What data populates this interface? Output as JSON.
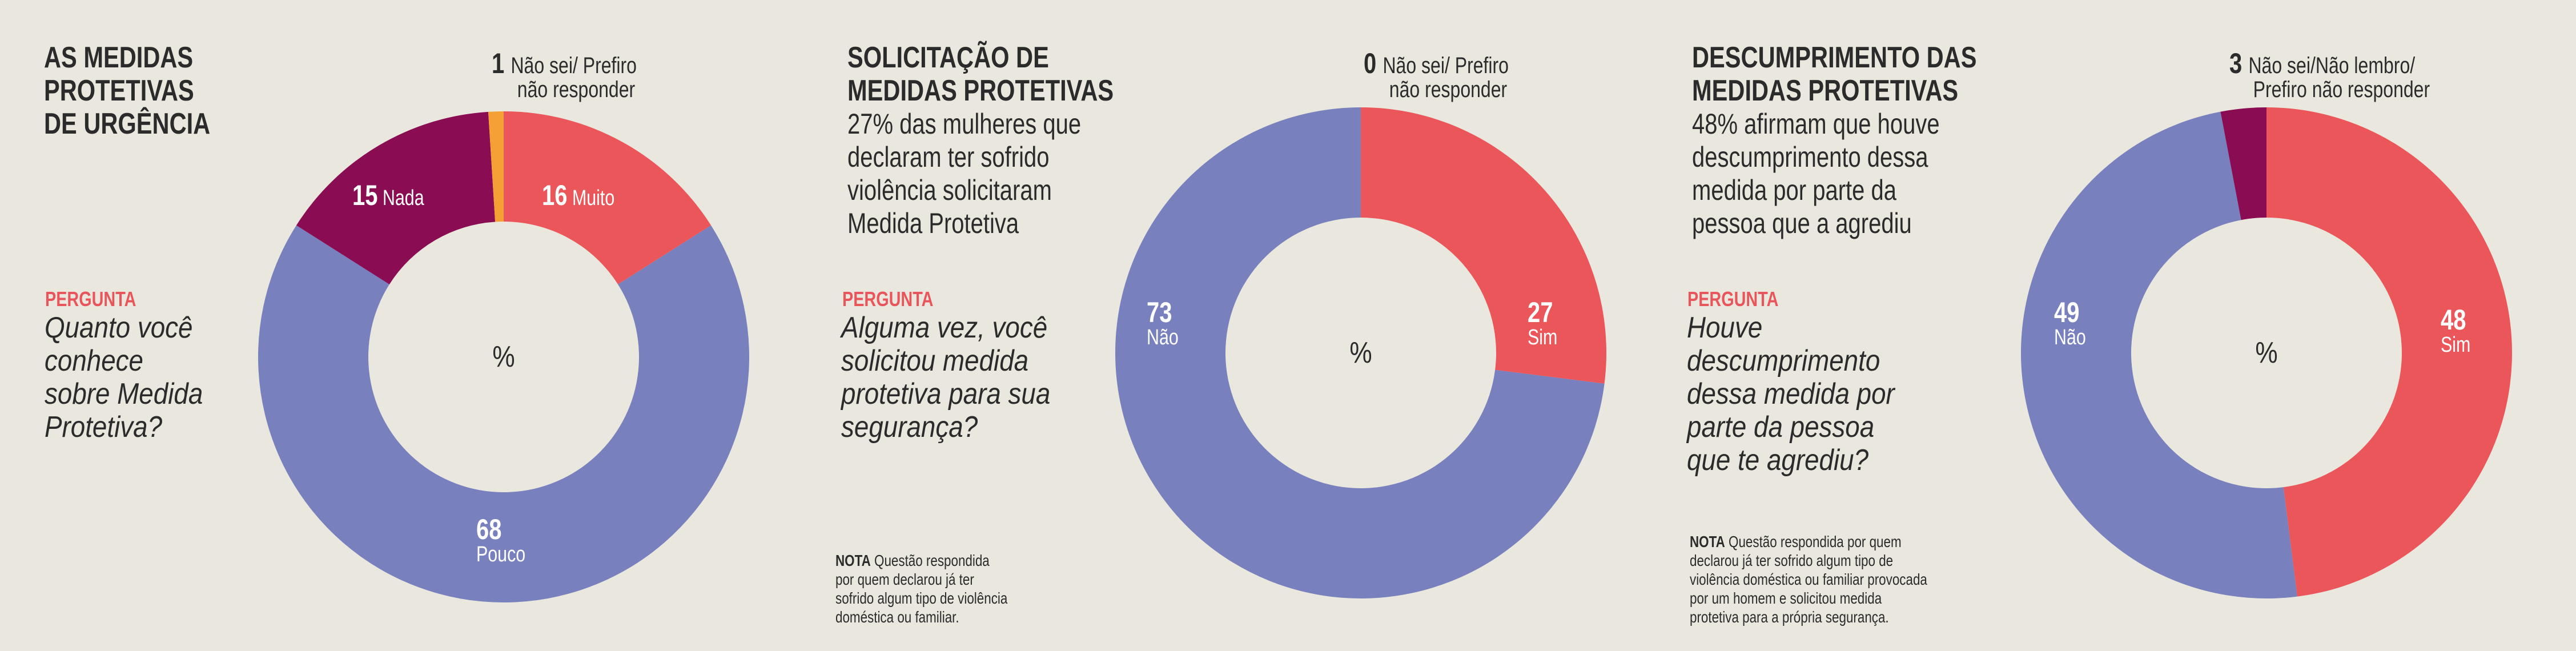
{
  "colors": {
    "background": "#eae8de",
    "red": "#ea5659",
    "blue": "#7880bd",
    "purple": "#8a0c53",
    "orange": "#f4a034",
    "pergunta": "#e8555b"
  },
  "chart_data": [
    {
      "type": "pie",
      "donut": true,
      "center_label": "%",
      "title": "AS MEDIDAS PROTETIVAS DE URGÊNCIA",
      "question_label": "PERGUNTA",
      "question": "Quanto você conhece sobre Medida Protetiva?",
      "slices": [
        {
          "label": "Muito",
          "value": 16,
          "color": "#ea5659"
        },
        {
          "label": "Pouco",
          "value": 68,
          "color": "#7880bd"
        },
        {
          "label": "Nada",
          "value": 15,
          "color": "#8a0c53"
        },
        {
          "label": "Não sei/ Prefiro não responder",
          "value": 1,
          "color": "#f4a034"
        }
      ]
    },
    {
      "type": "pie",
      "donut": true,
      "center_label": "%",
      "title": "SOLICITAÇÃO DE MEDIDAS PROTETIVAS",
      "subtitle": "27% das mulheres que declaram ter sofrido violência solicitaram Medida Protetiva",
      "question_label": "PERGUNTA",
      "question": "Alguma vez, você solicitou medida protetiva para sua segurança?",
      "note_label": "NOTA",
      "note": "Questão respondida por quem declarou já ter sofrido algum tipo de violência doméstica ou familiar.",
      "slices": [
        {
          "label": "Sim",
          "value": 27,
          "color": "#ea5659"
        },
        {
          "label": "Não",
          "value": 73,
          "color": "#7880bd"
        },
        {
          "label": "Não sei/ Prefiro não responder",
          "value": 0,
          "color": "#8a0c53"
        }
      ]
    },
    {
      "type": "pie",
      "donut": true,
      "center_label": "%",
      "title": "DESCUMPRIMENTO DAS MEDIDAS PROTETIVAS",
      "subtitle": "48% afirmam que houve descumprimento dessa medida por parte da pessoa que a agrediu",
      "question_label": "PERGUNTA",
      "question": "Houve descumprimento dessa medida por parte da pessoa que te agrediu?",
      "note_label": "NOTA",
      "note": "Questão respondida por quem declarou já ter sofrido algum tipo de violência doméstica ou familiar provocada por um homem e solicitou medida protetiva para a própria segurança.",
      "slices": [
        {
          "label": "Sim",
          "value": 48,
          "color": "#ea5659"
        },
        {
          "label": "Não",
          "value": 49,
          "color": "#7880bd"
        },
        {
          "label": "Não sei/Não lembro/ Prefiro não responder",
          "value": 3,
          "color": "#8a0c53"
        }
      ]
    }
  ],
  "text": {
    "c0": {
      "title1": "AS MEDIDAS",
      "title2": "PROTETIVAS",
      "title3": "DE URGÊNCIA",
      "q1": "Quanto você",
      "q2": "conhece",
      "q3": "sobre Medida",
      "q4": "Protetiva?",
      "ans_a": "Não sei/ Prefiro",
      "ans_b": "não responder"
    },
    "c1": {
      "title1": "SOLICITAÇÃO DE",
      "title2": "MEDIDAS PROTETIVAS",
      "s1": "27% das mulheres que",
      "s2": "declaram ter sofrido",
      "s3": "violência solicitaram",
      "s4": "Medida Protetiva",
      "q1": "Alguma vez, você",
      "q2": "solicitou medida",
      "q3": "protetiva para sua",
      "q4": "segurança?",
      "n1": "Questão respondida",
      "n2": "por quem declarou já ter",
      "n3": "sofrido algum tipo de violência",
      "n4": "doméstica ou familiar.",
      "ans_a": "Não sei/ Prefiro",
      "ans_b": "não responder"
    },
    "c2": {
      "title1": "DESCUMPRIMENTO DAS",
      "title2": "MEDIDAS PROTETIVAS",
      "s1": "48% afirmam que houve",
      "s2": "descumprimento dessa",
      "s3": "medida por parte da",
      "s4": "pessoa que a agrediu",
      "q1": "Houve",
      "q2": "descumprimento",
      "q3": "dessa medida por",
      "q4": "parte da pessoa",
      "q5": "que te agrediu?",
      "n1": "Questão respondida por quem",
      "n2": "declarou já ter sofrido algum tipo de",
      "n3": "violência doméstica ou familiar provocada",
      "n4": "por um homem e solicitou medida",
      "n5": "protetiva para a própria segurança.",
      "ans_a": "Não sei/Não lembro/",
      "ans_b": "Prefiro não responder"
    }
  }
}
